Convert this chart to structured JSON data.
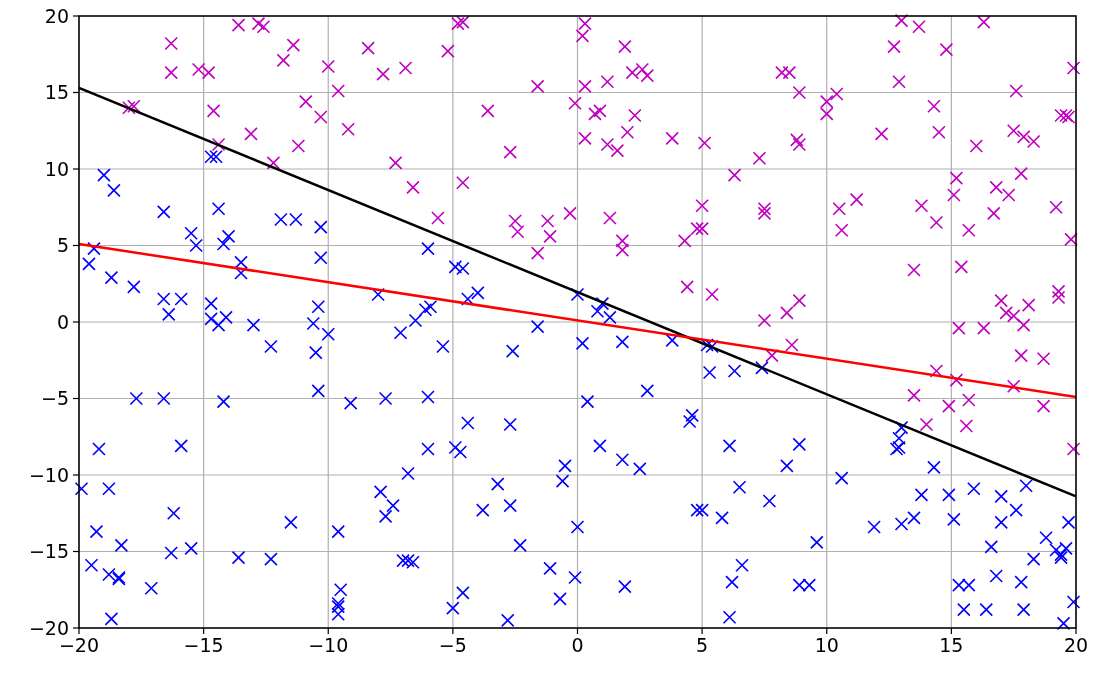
{
  "chart_data": {
    "type": "scatter",
    "grid": true,
    "xlim": [
      -20,
      20
    ],
    "ylim": [
      -20,
      20
    ],
    "xticks": [
      {
        "value": -20,
        "label": "−20"
      },
      {
        "value": -15,
        "label": "−15"
      },
      {
        "value": -10,
        "label": "−10"
      },
      {
        "value": -5,
        "label": "−5"
      },
      0,
      5,
      10,
      15,
      20
    ],
    "yticks": [
      {
        "value": -20,
        "label": "−20"
      },
      {
        "value": -15,
        "label": "−15"
      },
      {
        "value": -10,
        "label": "−10"
      },
      {
        "value": -5,
        "label": "−5"
      },
      0,
      5,
      10,
      15,
      20
    ],
    "series": [
      {
        "marker": "cross",
        "color": "#bf00bf",
        "x": [
          -16.3,
          -16.3,
          -15.2,
          -14.8,
          -18,
          -17.8,
          -14.6,
          -14.4,
          -13.6,
          -12.8,
          -12.6,
          -13.1,
          -12.2,
          -11.8,
          -11.4,
          -11.2,
          -10.9,
          -10.3,
          -10,
          -9.6,
          -9.2,
          -8.4,
          -7.8,
          -7.3,
          -6.9,
          -6.6,
          -5.6,
          -5.2,
          -4.8,
          -4.6,
          -4.6,
          -3.6,
          -2.7,
          -2.5,
          -2.4,
          -1.6,
          -1.6,
          -1.2,
          -1.1,
          -0.3,
          -0.1,
          0.2,
          0.3,
          0.3,
          0.3,
          0.7,
          0.9,
          1.2,
          1.2,
          1.3,
          1.6,
          1.8,
          1.8,
          1.9,
          2.0,
          2.2,
          2.3,
          2.6,
          2.8,
          3.8,
          4.3,
          4.4,
          4.8,
          5.0,
          5.0,
          5.1,
          5.4,
          6.3,
          7.3,
          7.5,
          7.5,
          7.5,
          7.8,
          8.2,
          8.5,
          8.4,
          8.6,
          8.8,
          8.9,
          8.9,
          8.9,
          10,
          10,
          10.4,
          10.5,
          10.6,
          11.2,
          12.2,
          12.7,
          12.9,
          13,
          13.5,
          13.5,
          13.7,
          13.8,
          14,
          14.3,
          14.4,
          14.5,
          14.4,
          14.8,
          14.9,
          15.2,
          15.1,
          15.2,
          15.3,
          15.4,
          15.7,
          15.6,
          15.7,
          16,
          16.3,
          16.3,
          16.8,
          16.7,
          17,
          17.3,
          17.2,
          17.5,
          17.5,
          17.5,
          17.6,
          17.8,
          17.8,
          17.9,
          17.9,
          18.3,
          18.1,
          18.7,
          18.7,
          19.2,
          19.3,
          19.3,
          19.4,
          19.6,
          19.7,
          19.8,
          19.9,
          19.9
        ],
        "values": [
          18.2,
          16.3,
          16.5,
          16.3,
          14,
          14.1,
          13.8,
          11.6,
          19.4,
          19.5,
          19.3,
          12.3,
          10.4,
          17.1,
          18.1,
          11.5,
          14.4,
          13.4,
          16.7,
          15.1,
          12.6,
          17.9,
          16.2,
          10.4,
          16.6,
          8.8,
          6.8,
          17.7,
          19.5,
          19.6,
          9.1,
          13.8,
          11.1,
          6.6,
          5.9,
          4.5,
          15.4,
          6.6,
          5.6,
          7.1,
          14.3,
          18.7,
          19.5,
          15.4,
          12,
          13.6,
          13.8,
          15.7,
          11.6,
          6.8,
          11.2,
          5.3,
          4.7,
          18,
          12.4,
          16.3,
          13.5,
          16.5,
          16.1,
          12,
          5.3,
          2.3,
          6.1,
          7.6,
          6.1,
          11.7,
          1.8,
          9.6,
          10.7,
          7.4,
          7.1,
          0.1,
          -2.2,
          16.3,
          16.3,
          0.6,
          -1.5,
          11.9,
          11.6,
          1.4,
          15,
          14.4,
          13.6,
          14.9,
          7.4,
          6,
          8,
          12.3,
          18,
          15.7,
          19.7,
          3.4,
          -4.8,
          19.3,
          7.6,
          -6.7,
          14.1,
          6.5,
          12.4,
          -3.2,
          17.8,
          -5.5,
          9.4,
          8.3,
          -3.8,
          -0.4,
          3.6,
          6,
          -6.8,
          -5.1,
          11.5,
          19.6,
          -0.4,
          8.8,
          7.1,
          1.4,
          8.3,
          0.6,
          0.4,
          12.5,
          -4.2,
          15.1,
          9.7,
          -2.2,
          -0.2,
          12.1,
          11.8,
          1.1,
          -2.4,
          -5.5,
          7.5,
          2,
          1.6,
          13.5,
          13.5,
          13.4,
          5.4,
          16.6,
          -8.3
        ]
      },
      {
        "marker": "cross",
        "color": "#0000ff",
        "x": [
          -19,
          -18.6,
          -19.6,
          -19.4,
          -18.7,
          -17.8,
          -17.7,
          -19.2,
          -19.9,
          -18.8,
          -19.5,
          -19.3,
          -18.8,
          -18.4,
          -18.3,
          -18.4,
          -18.7,
          -17.1,
          -16.6,
          -16.6,
          -16.4,
          -16.6,
          -16.3,
          -16.2,
          -15.9,
          -15.9,
          -15.5,
          -15.5,
          -15.3,
          -14.7,
          -14.5,
          -14.7,
          -14.7,
          -14.4,
          -14.4,
          -14.1,
          -14.2,
          -14,
          -14.2,
          -13.5,
          -13.5,
          -13.6,
          -13,
          -12.3,
          -12.3,
          -11.9,
          -11.3,
          -11.5,
          -10.3,
          -10.3,
          -10.4,
          -10.6,
          -10.5,
          -10.4,
          -10,
          -9.6,
          -9.5,
          -9.6,
          -9.6,
          -9.6,
          -9.1,
          -8,
          -7.9,
          -7.7,
          -7.7,
          -7.4,
          -7.1,
          -7.0,
          -6.8,
          -6.6,
          -6.8,
          -6.5,
          -6.1,
          -5.9,
          -6,
          -6,
          -6,
          -5.4,
          -4.9,
          -4.6,
          -4.4,
          -4.0,
          -4.9,
          -4.7,
          -4.4,
          -5,
          -4.6,
          -3.8,
          -3.2,
          -2.7,
          -2.6,
          -2.7,
          -2.3,
          -2.8,
          -1.6,
          -1.1,
          -0.7,
          -0.6,
          -0.5,
          0,
          0.2,
          0.4,
          0,
          -0.1,
          0.8,
          1,
          1.3,
          0.9,
          1.8,
          1.8,
          1.9,
          2.5,
          2.8,
          3.8,
          4.6,
          4.5,
          4.8,
          5,
          5.2,
          5.3,
          5.4,
          5.8,
          6.1,
          6.1,
          6.2,
          6.5,
          6.3,
          6.6,
          7.4,
          7.7,
          8.4,
          8.9,
          8.9,
          9.3,
          9.6,
          10.6,
          11.9,
          12.8,
          12.9,
          13,
          12.9,
          13,
          13.5,
          13.8,
          14.3,
          14.9,
          15.1,
          15.3,
          15.5,
          15.9,
          16.4,
          16.6,
          16.8,
          17.0,
          17,
          17.6,
          17.8,
          17.9,
          18.0,
          18.3,
          18.8,
          19.2,
          19.4,
          19.4,
          19.6,
          19.7,
          19.9,
          19.5,
          15.7
        ],
        "values": [
          9.6,
          8.6,
          3.8,
          4.8,
          2.9,
          2.3,
          -5,
          -8.3,
          -10.9,
          -10.9,
          -15.9,
          -13.7,
          -16.5,
          -16.8,
          -14.6,
          -16.7,
          -19.4,
          -17.4,
          1.5,
          7.2,
          0.5,
          -5,
          -15.1,
          -12.5,
          1.5,
          -8.1,
          -14.8,
          5.8,
          5,
          10.8,
          10.8,
          1.2,
          0.2,
          7.4,
          -0.2,
          0.3,
          5.1,
          5.6,
          -5.2,
          3.9,
          3.2,
          -15.4,
          -0.2,
          -1.6,
          -15.5,
          6.7,
          6.7,
          -13.1,
          6.2,
          4.2,
          1,
          -0.1,
          -2,
          -4.5,
          -0.8,
          -13.7,
          -17.5,
          -18.4,
          -18.6,
          -19.1,
          -5.3,
          1.8,
          -11.1,
          -12.7,
          -5,
          -12,
          -0.7,
          -15.6,
          -9.9,
          -15.7,
          -15.6,
          0.1,
          0.8,
          1,
          4.8,
          -4.9,
          -8.3,
          -1.6,
          3.6,
          3.5,
          1.5,
          1.9,
          -8.2,
          -8.5,
          -6.6,
          -18.7,
          -17.7,
          -12.3,
          -10.6,
          -12,
          -1.9,
          -6.7,
          -14.6,
          -19.5,
          -0.3,
          -16.1,
          -18.1,
          -10.4,
          -9.4,
          1.8,
          -1.4,
          -5.2,
          -13.4,
          -16.7,
          0.7,
          1.2,
          0.3,
          -8.1,
          -9,
          -1.3,
          -17.3,
          -9.6,
          -4.5,
          -1.2,
          -6.1,
          -6.5,
          -12.3,
          -12.3,
          -1.5,
          -3.3,
          -1.6,
          -12.8,
          -19.3,
          -8.1,
          -17,
          -10.8,
          -3.2,
          -15.9,
          -3,
          -11.7,
          -9.4,
          -8,
          -17.2,
          -17.2,
          -14.4,
          -10.2,
          -13.4,
          -8.3,
          -7.6,
          -6.9,
          -8.2,
          -13.2,
          -12.8,
          -11.3,
          -9.5,
          -11.3,
          -12.9,
          -17.2,
          -18.8,
          -10.9,
          -18.8,
          -14.7,
          -16.6,
          -13.1,
          -11.4,
          -12.3,
          -17,
          -18.8,
          -10.7,
          -15.5,
          -14.1,
          -14.9,
          -15.2,
          -15.4,
          -14.8,
          -13.1,
          -18.3,
          -19.7,
          -17.2
        ]
      },
      {
        "type": "line",
        "color": "#000000",
        "x": [
          -20,
          20
        ],
        "values": [
          15.3,
          -11.4
        ]
      },
      {
        "type": "line",
        "color": "#ff0000",
        "x": [
          -20,
          20
        ],
        "values": [
          5.1,
          -4.9
        ]
      }
    ]
  }
}
